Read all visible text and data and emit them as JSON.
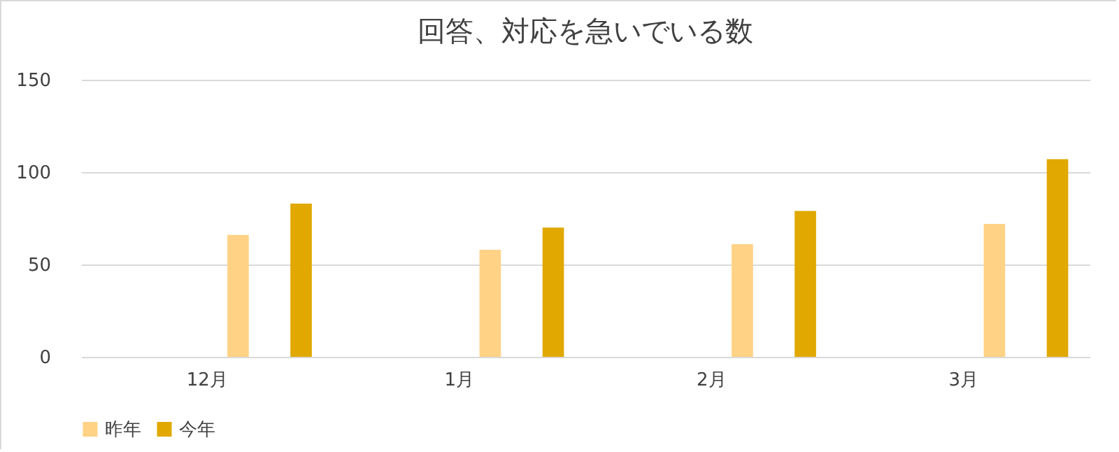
{
  "chart_data": {
    "type": "bar",
    "title": "回答、対応を急いでいる数",
    "categories": [
      "12月",
      "1月",
      "2月",
      "3月"
    ],
    "series": [
      {
        "name": "昨年",
        "color": "#ffd285",
        "values": [
          66,
          58,
          61,
          72
        ]
      },
      {
        "name": "今年",
        "color": "#e0a800",
        "values": [
          83,
          70,
          79,
          107
        ]
      }
    ],
    "ylim": [
      0,
      150
    ],
    "yticks": [
      0,
      50,
      100,
      150
    ],
    "grid": "y",
    "legend": "bottom"
  }
}
